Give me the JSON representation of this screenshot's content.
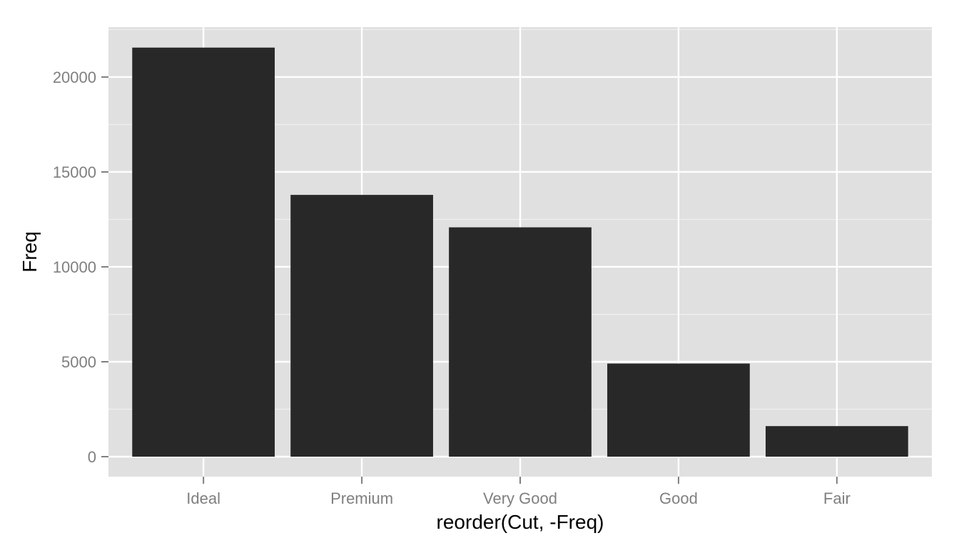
{
  "chart_data": {
    "type": "bar",
    "title": "",
    "xlabel": "reorder(Cut, -Freq)",
    "ylabel": "Freq",
    "categories": [
      "Ideal",
      "Premium",
      "Very Good",
      "Good",
      "Fair"
    ],
    "values": [
      21551,
      13791,
      12082,
      4906,
      1610
    ],
    "ylim": [
      0,
      22630
    ],
    "yticks": [
      0,
      5000,
      10000,
      15000,
      20000
    ],
    "ytick_labels": [
      "0",
      "5000",
      "10000",
      "15000",
      "20000"
    ],
    "grid": true,
    "legend": "none",
    "colors": {
      "bar": "#282828",
      "panel": "#e0e0e0",
      "grid_major": "#ffffff",
      "grid_minor": "#f0f0f0",
      "tick_label": "#7f7f7f",
      "axis_title": "#000000"
    }
  }
}
